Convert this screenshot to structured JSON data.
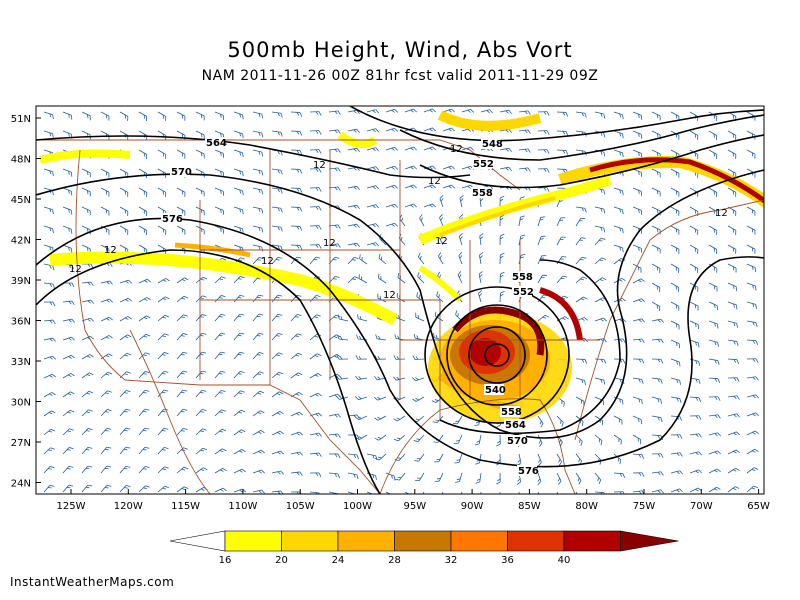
{
  "title": "500mb Height, Wind, Abs Vort",
  "subtitle": "NAM 2011-11-26 00Z 81hr fcst valid 2011-11-29 09Z",
  "credit": "InstantWeatherMaps.com",
  "lat_labels": [
    "51N",
    "48N",
    "45N",
    "42N",
    "39N",
    "36N",
    "33N",
    "30N",
    "27N",
    "24N"
  ],
  "lon_labels": [
    "125W",
    "120W",
    "115W",
    "110W",
    "105W",
    "100W",
    "95W",
    "90W",
    "85W",
    "80W",
    "75W",
    "70W",
    "65W"
  ],
  "contour_labels": [
    "564",
    "570",
    "576",
    "548",
    "552",
    "558",
    "558",
    "552",
    "540",
    "558",
    "564",
    "570",
    "576"
  ],
  "vort_labels": [
    "12",
    "12",
    "12",
    "12",
    "12",
    "12",
    "12",
    "12",
    "12",
    "12"
  ],
  "colorbar": {
    "ticks": [
      "16",
      "20",
      "24",
      "28",
      "32",
      "36",
      "40"
    ],
    "colors": [
      "#ffffff",
      "#ffff00",
      "#ffd700",
      "#ffb000",
      "#c87800",
      "#ff7700",
      "#dd3300",
      "#b00000",
      "#880000"
    ]
  },
  "colors": {
    "height_contour": "#000000",
    "wind_barb": "#1f5f9e",
    "border": "#a0522d"
  }
}
